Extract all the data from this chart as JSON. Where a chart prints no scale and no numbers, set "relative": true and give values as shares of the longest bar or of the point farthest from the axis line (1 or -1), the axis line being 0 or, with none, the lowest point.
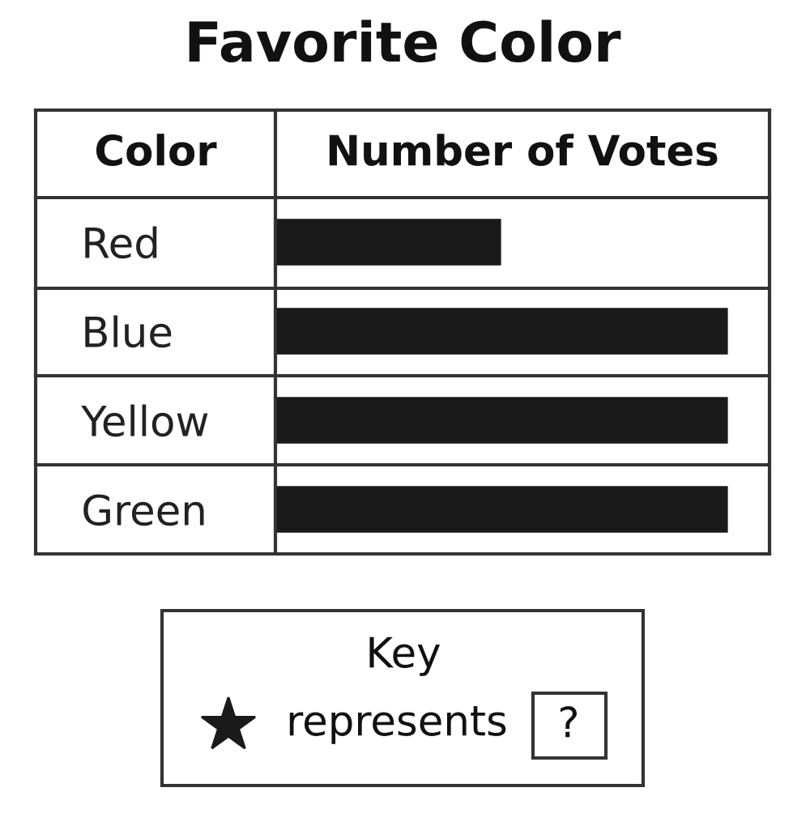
{
  "chart_data": {
    "type": "bar",
    "orientation": "horizontal",
    "relative": true,
    "title": "Favorite Color",
    "xlabel": "Number of Votes",
    "ylabel": "Color",
    "categories": [
      "Red",
      "Blue",
      "Yellow",
      "Green"
    ],
    "values": [
      0.5,
      1,
      1,
      1
    ],
    "color": "#1a1a1a",
    "tick_labels": "y",
    "annotations": [
      "Key",
      "represents",
      "?"
    ]
  }
}
